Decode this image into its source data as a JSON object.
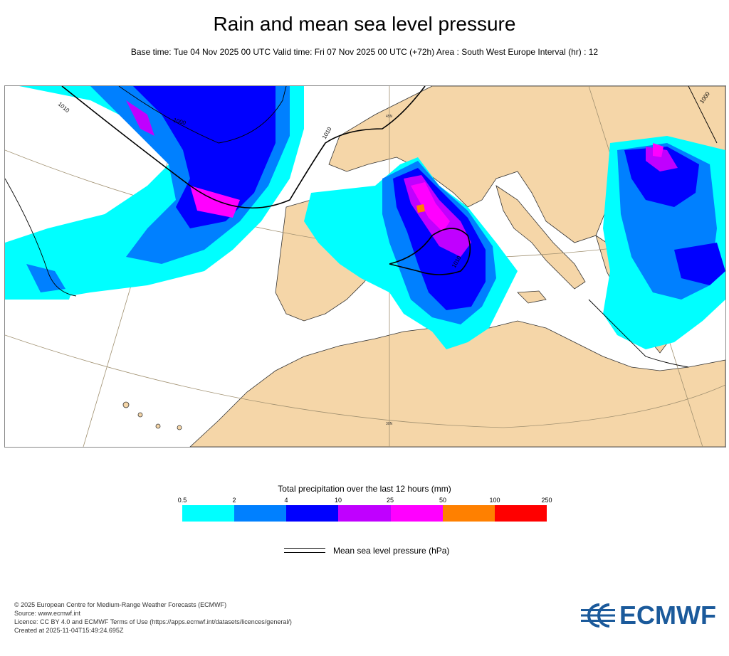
{
  "title": "Rain and mean sea level pressure",
  "subtitle": "Base time: Tue 04 Nov 2025 00 UTC Valid time: Fri 07 Nov 2025 00 UTC (+72h) Area : South West Europe Interval (hr) : 12",
  "map": {
    "land_color": "#f5d6a8",
    "sea_color": "#ffffff",
    "isobar_labels": [
      "1010",
      "1000",
      "1010",
      "1010",
      "1000"
    ],
    "graticule_labels": [
      "45N",
      "30N"
    ]
  },
  "legend": {
    "title": "Total precipitation over the last 12 hours (mm)",
    "ticks": [
      "0.5",
      "2",
      "4",
      "10",
      "25",
      "50",
      "100",
      "250"
    ],
    "colors": [
      "#00ffff",
      "#0080ff",
      "#0000ff",
      "#c000ff",
      "#ff00ff",
      "#ff8000",
      "#ff0000"
    ]
  },
  "pressure_legend": {
    "label": "Mean sea level pressure (hPa)"
  },
  "footer": {
    "lines": [
      "© 2025 European Centre for Medium-Range Weather Forecasts (ECMWF)",
      "Source: www.ecmwf.int",
      "Licence: CC BY 4.0 and ECMWF Terms of Use (https://apps.ecmwf.int/datasets/licences/general/)",
      "Created at 2025-11-04T15:49:24.695Z"
    ]
  },
  "logo": {
    "text": "ECMWF",
    "color": "#1b5a9b"
  }
}
